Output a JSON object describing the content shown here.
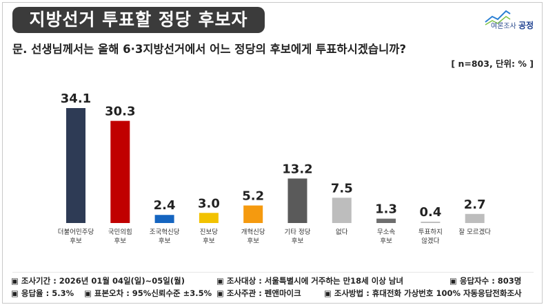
{
  "header": {
    "title": "지방선거 투표할 정당 후보자",
    "logo_text": "여론조사",
    "logo_brand": "공정"
  },
  "question": "문. 선생님께서는 올해 6·3지방선거에서 어느 정당의 후보에게 투표하시겠습니까?",
  "note": "[ n=803, 단위: % ]",
  "chart_data": {
    "type": "bar",
    "categories": [
      [
        "더불어민주당",
        "후보"
      ],
      [
        "국민의힘",
        "후보"
      ],
      [
        "조국혁신당",
        "후보"
      ],
      [
        "진보당",
        "후보"
      ],
      [
        "개혁신당",
        "후보"
      ],
      [
        "기타 정당",
        "후보"
      ],
      [
        "없다"
      ],
      [
        "무소속",
        "후보"
      ],
      [
        "투표하지",
        "않겠다"
      ],
      [
        "잘 모르겠다"
      ]
    ],
    "values": [
      34.1,
      30.3,
      2.4,
      3.0,
      5.2,
      13.2,
      7.5,
      1.3,
      0.4,
      2.7
    ],
    "value_labels": [
      "34.1",
      "30.3",
      "2.4",
      "3.0",
      "5.2",
      "13.2",
      "7.5",
      "1.3",
      "0.4",
      "2.7"
    ],
    "colors": [
      "#2e3b55",
      "#c00000",
      "#1565c0",
      "#f2c200",
      "#f59a0f",
      "#5a5a5a",
      "#bdbdbd",
      "#6e6e6e",
      "#bdbdbd",
      "#bdbdbd"
    ],
    "ylim": [
      0,
      40
    ],
    "grid": false,
    "legend": "none"
  },
  "footer": {
    "row1": [
      "▣ 조사기간 : 2026년 01월 04일(일)~05일(월)",
      "▣ 조사대상 : 서울특별시에 거주하는 만18세 이상 남녀",
      "▣ 응답자수 : 803명"
    ],
    "row2": [
      "▣ 응답율 : 5.3%",
      "▣ 표본오차 : 95%신뢰수준 ±3.5%",
      "▣ 조사주관 : 펜앤마이크",
      "▣ 조사방법 : 휴대전화 가상번호 100% 자동응답전화조사"
    ]
  }
}
